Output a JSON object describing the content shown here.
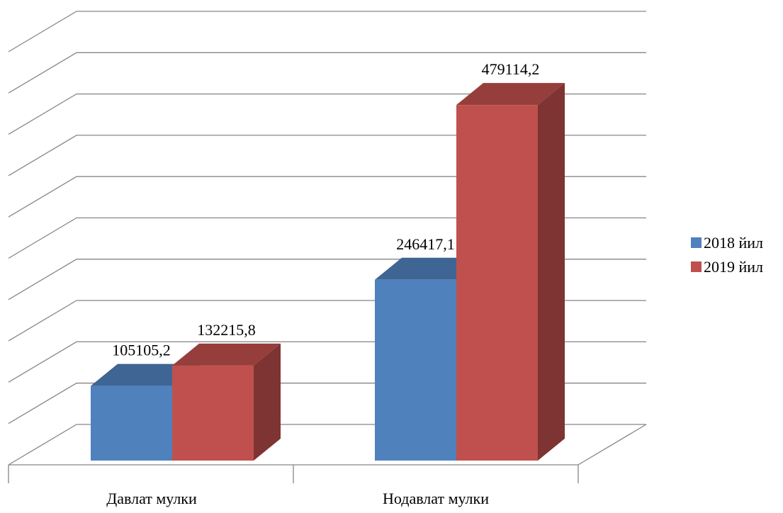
{
  "chart_data": {
    "type": "bar",
    "categories": [
      "Давлат мулки",
      "Нодавлат мулки"
    ],
    "series": [
      {
        "name": "2018 йил",
        "values": [
          105105.2,
          246417.1
        ],
        "labels": [
          "105105,2",
          "246417,1"
        ],
        "color": "#4F81BD"
      },
      {
        "name": "2019 йил",
        "values": [
          132215.8,
          479114.2
        ],
        "labels": [
          "132215,8",
          "479114,2"
        ],
        "color": "#C0504D"
      }
    ],
    "ylim": [
      0,
      550000
    ],
    "grid": true,
    "legend_position": "right",
    "three_d": true
  }
}
